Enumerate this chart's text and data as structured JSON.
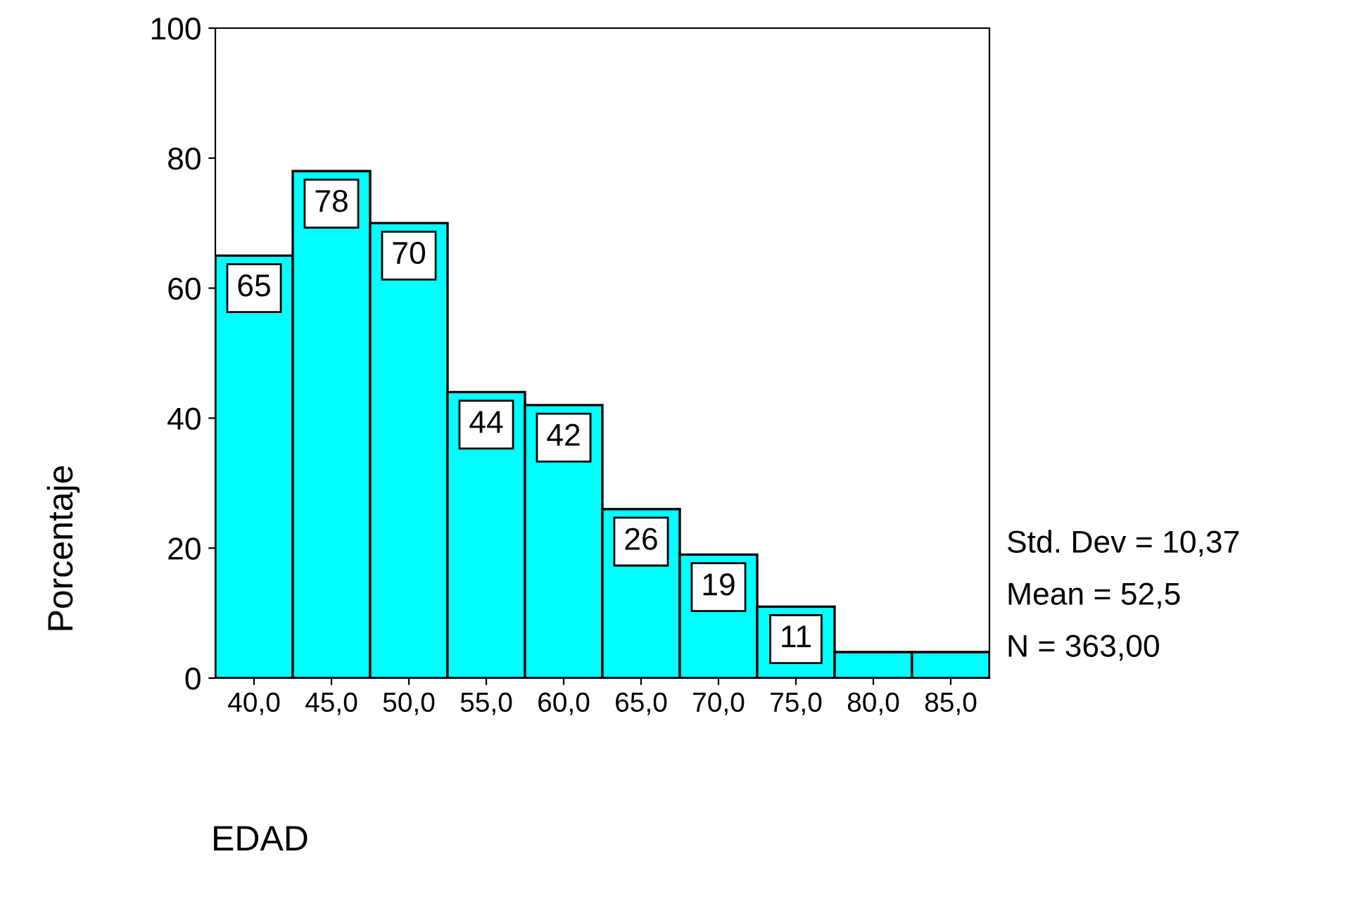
{
  "chart_data": {
    "type": "histogram",
    "xlabel": "EDAD",
    "ylabel": "Porcentaje",
    "bins": [
      37.5,
      42.5,
      47.5,
      52.5,
      57.5,
      62.5,
      67.5,
      72.5,
      77.5,
      82.5,
      87.5
    ],
    "values": [
      65,
      78,
      70,
      44,
      42,
      26,
      19,
      11,
      4,
      4
    ],
    "value_labels": [
      "65",
      "78",
      "70",
      "44",
      "42",
      "26",
      "19",
      "11",
      null,
      null
    ],
    "color": "#00ffff",
    "xlim": [
      37.5,
      87.5
    ],
    "xticks": [
      {
        "value": 40,
        "label": "40,0"
      },
      {
        "value": 45,
        "label": "45,0"
      },
      {
        "value": 50,
        "label": "50,0"
      },
      {
        "value": 55,
        "label": "55,0"
      },
      {
        "value": 60,
        "label": "60,0"
      },
      {
        "value": 65,
        "label": "65,0"
      },
      {
        "value": 70,
        "label": "70,0"
      },
      {
        "value": 75,
        "label": "75,0"
      },
      {
        "value": 80,
        "label": "80,0"
      },
      {
        "value": 85,
        "label": "85,0"
      }
    ],
    "ylim": [
      0,
      100
    ],
    "yticks": [
      0,
      20,
      40,
      60,
      80,
      100
    ],
    "grid": false,
    "legend": false,
    "annotations": [
      "Std. Dev = 10,37",
      "Mean = 52,5",
      "N = 363,00"
    ]
  }
}
